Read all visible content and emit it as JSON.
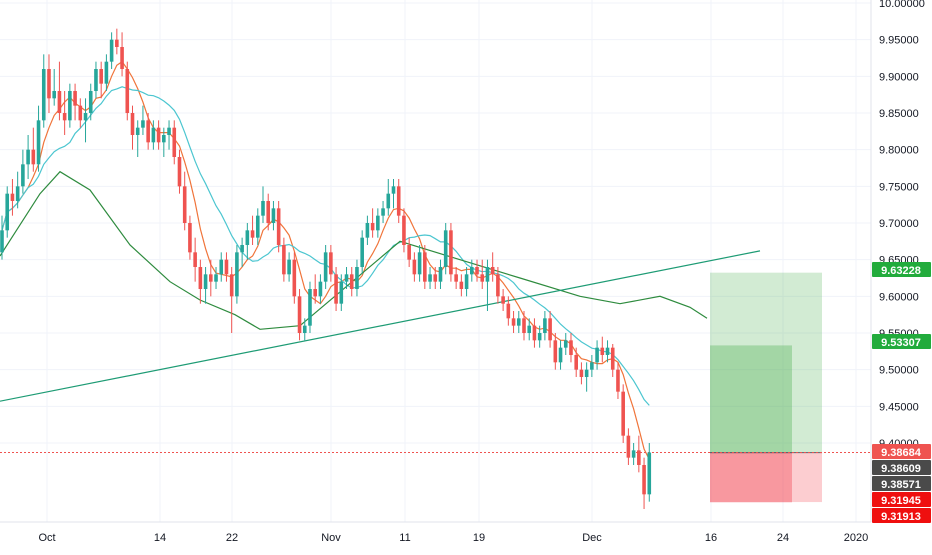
{
  "chart_data": {
    "type": "candlestick",
    "title": "",
    "xlabel": "",
    "ylabel": "",
    "ylim": [
      9.255,
      10.0
    ],
    "grid": true,
    "x_ticks": [
      "Oct",
      "14",
      "22",
      "Nov",
      "11",
      "19",
      "Dec",
      "16",
      "24",
      "2020"
    ],
    "y_ticks": [
      "9.40000",
      "9.45000",
      "9.50000",
      "9.55000",
      "9.60000",
      "9.65000",
      "9.70000",
      "9.75000",
      "9.80000",
      "9.85000",
      "9.90000",
      "9.95000",
      "10.00000"
    ],
    "price_labels": [
      {
        "value": "9.63228",
        "color": "#22ab3c"
      },
      {
        "value": "9.53307",
        "color": "#22ab3c"
      },
      {
        "value": "9.38684",
        "color": "#ef5350"
      },
      {
        "value": "9.38609",
        "color": "#4a4a4a"
      },
      {
        "value": "9.38571",
        "color": "#4a4a4a"
      },
      {
        "value": "9.31945",
        "color": "#ef0f0f"
      },
      {
        "value": "9.31913",
        "color": "#ef0f0f"
      }
    ],
    "series": [
      {
        "type": "moving-average",
        "color": "#f0743a"
      },
      {
        "type": "moving-average",
        "color": "#4cc6d0"
      },
      {
        "type": "moving-average",
        "color": "#2e8b3e"
      },
      {
        "type": "trendline",
        "color": "#1d9b74",
        "points": [
          [
            0,
            9.457
          ],
          [
            136,
            9.662
          ]
        ]
      }
    ],
    "position_tools": [
      {
        "entry": 9.38684,
        "target": 9.63228,
        "stop": 9.31945
      },
      {
        "entry": 9.38684,
        "target": 9.53307,
        "stop": 9.31913
      }
    ],
    "candles": [
      [
        9.66,
        9.71,
        9.65,
        9.69
      ],
      [
        9.69,
        9.75,
        9.68,
        9.74
      ],
      [
        9.74,
        9.76,
        9.71,
        9.73
      ],
      [
        9.73,
        9.77,
        9.72,
        9.75
      ],
      [
        9.75,
        9.8,
        9.74,
        9.78
      ],
      [
        9.78,
        9.82,
        9.76,
        9.8
      ],
      [
        9.8,
        9.83,
        9.77,
        9.78
      ],
      [
        9.78,
        9.86,
        9.77,
        9.84
      ],
      [
        9.84,
        9.93,
        9.83,
        9.91
      ],
      [
        9.91,
        9.93,
        9.85,
        9.87
      ],
      [
        9.87,
        9.91,
        9.86,
        9.88
      ],
      [
        9.88,
        9.92,
        9.84,
        9.85
      ],
      [
        9.85,
        9.88,
        9.82,
        9.84
      ],
      [
        9.84,
        9.89,
        9.83,
        9.88
      ],
      [
        9.88,
        9.89,
        9.84,
        9.86
      ],
      [
        9.86,
        9.87,
        9.83,
        9.84
      ],
      [
        9.84,
        9.87,
        9.81,
        9.85
      ],
      [
        9.85,
        9.89,
        9.84,
        9.88
      ],
      [
        9.88,
        9.92,
        9.87,
        9.91
      ],
      [
        9.91,
        9.92,
        9.87,
        9.89
      ],
      [
        9.89,
        9.93,
        9.88,
        9.92
      ],
      [
        9.92,
        9.96,
        9.91,
        9.95
      ],
      [
        9.95,
        9.965,
        9.93,
        9.94
      ],
      [
        9.94,
        9.96,
        9.9,
        9.91
      ],
      [
        9.91,
        9.92,
        9.84,
        9.85
      ],
      [
        9.85,
        9.86,
        9.8,
        9.82
      ],
      [
        9.82,
        9.84,
        9.79,
        9.83
      ],
      [
        9.83,
        9.86,
        9.82,
        9.84
      ],
      [
        9.84,
        9.85,
        9.8,
        9.81
      ],
      [
        9.81,
        9.84,
        9.8,
        9.83
      ],
      [
        9.83,
        9.84,
        9.8,
        9.81
      ],
      [
        9.81,
        9.83,
        9.79,
        9.82
      ],
      [
        9.82,
        9.84,
        9.8,
        9.83
      ],
      [
        9.83,
        9.84,
        9.78,
        9.79
      ],
      [
        9.79,
        9.8,
        9.74,
        9.75
      ],
      [
        9.75,
        9.77,
        9.69,
        9.7
      ],
      [
        9.7,
        9.71,
        9.65,
        9.66
      ],
      [
        9.66,
        9.68,
        9.62,
        9.64
      ],
      [
        9.64,
        9.65,
        9.59,
        9.61
      ],
      [
        9.61,
        9.64,
        9.59,
        9.63
      ],
      [
        9.63,
        9.65,
        9.6,
        9.62
      ],
      [
        9.62,
        9.64,
        9.61,
        9.63
      ],
      [
        9.63,
        9.66,
        9.62,
        9.65
      ],
      [
        9.65,
        9.66,
        9.62,
        9.63
      ],
      [
        9.63,
        9.64,
        9.55,
        9.6
      ],
      [
        9.6,
        9.67,
        9.59,
        9.66
      ],
      [
        9.66,
        9.68,
        9.64,
        9.67
      ],
      [
        9.67,
        9.7,
        9.65,
        9.69
      ],
      [
        9.69,
        9.71,
        9.67,
        9.68
      ],
      [
        9.68,
        9.72,
        9.67,
        9.71
      ],
      [
        9.71,
        9.75,
        9.7,
        9.73
      ],
      [
        9.73,
        9.74,
        9.69,
        9.7
      ],
      [
        9.7,
        9.73,
        9.69,
        9.72
      ],
      [
        9.72,
        9.73,
        9.66,
        9.67
      ],
      [
        9.67,
        9.68,
        9.62,
        9.63
      ],
      [
        9.63,
        9.66,
        9.62,
        9.65
      ],
      [
        9.65,
        9.66,
        9.59,
        9.6
      ],
      [
        9.6,
        9.61,
        9.54,
        9.55
      ],
      [
        9.55,
        9.57,
        9.54,
        9.56
      ],
      [
        9.56,
        9.62,
        9.55,
        9.61
      ],
      [
        9.61,
        9.63,
        9.59,
        9.6
      ],
      [
        9.6,
        9.63,
        9.59,
        9.62
      ],
      [
        9.62,
        9.67,
        9.61,
        9.66
      ],
      [
        9.66,
        9.67,
        9.62,
        9.63
      ],
      [
        9.63,
        9.64,
        9.58,
        9.59
      ],
      [
        9.59,
        9.63,
        9.58,
        9.62
      ],
      [
        9.62,
        9.64,
        9.61,
        9.63
      ],
      [
        9.63,
        9.64,
        9.6,
        9.61
      ],
      [
        9.61,
        9.65,
        9.6,
        9.64
      ],
      [
        9.64,
        9.69,
        9.63,
        9.68
      ],
      [
        9.68,
        9.71,
        9.67,
        9.7
      ],
      [
        9.7,
        9.72,
        9.68,
        9.69
      ],
      [
        9.69,
        9.72,
        9.68,
        9.71
      ],
      [
        9.71,
        9.73,
        9.7,
        9.72
      ],
      [
        9.72,
        9.76,
        9.71,
        9.74
      ],
      [
        9.74,
        9.76,
        9.72,
        9.75
      ],
      [
        9.75,
        9.76,
        9.7,
        9.71
      ],
      [
        9.71,
        9.72,
        9.66,
        9.67
      ],
      [
        9.67,
        9.68,
        9.64,
        9.65
      ],
      [
        9.65,
        9.66,
        9.62,
        9.63
      ],
      [
        9.63,
        9.67,
        9.62,
        9.66
      ],
      [
        9.66,
        9.67,
        9.61,
        9.62
      ],
      [
        9.62,
        9.64,
        9.61,
        9.63
      ],
      [
        9.63,
        9.64,
        9.61,
        9.62
      ],
      [
        9.62,
        9.65,
        9.61,
        9.64
      ],
      [
        9.64,
        9.7,
        9.63,
        9.69
      ],
      [
        9.69,
        9.7,
        9.62,
        9.63
      ],
      [
        9.63,
        9.64,
        9.61,
        9.62
      ],
      [
        9.62,
        9.63,
        9.6,
        9.61
      ],
      [
        9.61,
        9.64,
        9.6,
        9.63
      ],
      [
        9.63,
        9.65,
        9.62,
        9.64
      ],
      [
        9.64,
        9.65,
        9.62,
        9.63
      ],
      [
        9.63,
        9.65,
        9.61,
        9.62
      ],
      [
        9.62,
        9.65,
        9.58,
        9.64
      ],
      [
        9.64,
        9.66,
        9.62,
        9.63
      ],
      [
        9.63,
        9.64,
        9.59,
        9.6
      ],
      [
        9.6,
        9.61,
        9.58,
        9.59
      ],
      [
        9.59,
        9.6,
        9.56,
        9.57
      ],
      [
        9.57,
        9.58,
        9.55,
        9.56
      ],
      [
        9.56,
        9.58,
        9.55,
        9.57
      ],
      [
        9.57,
        9.58,
        9.54,
        9.55
      ],
      [
        9.55,
        9.57,
        9.54,
        9.56
      ],
      [
        9.56,
        9.57,
        9.53,
        9.54
      ],
      [
        9.54,
        9.56,
        9.53,
        9.55
      ],
      [
        9.55,
        9.58,
        9.54,
        9.57
      ],
      [
        9.57,
        9.58,
        9.53,
        9.54
      ],
      [
        9.54,
        9.55,
        9.5,
        9.51
      ],
      [
        9.51,
        9.54,
        9.5,
        9.53
      ],
      [
        9.53,
        9.55,
        9.52,
        9.54
      ],
      [
        9.54,
        9.55,
        9.51,
        9.52
      ],
      [
        9.52,
        9.53,
        9.49,
        9.5
      ],
      [
        9.5,
        9.51,
        9.48,
        9.49
      ],
      [
        9.49,
        9.51,
        9.47,
        9.5
      ],
      [
        9.5,
        9.52,
        9.49,
        9.51
      ],
      [
        9.51,
        9.54,
        9.5,
        9.53
      ],
      [
        9.53,
        9.545,
        9.51,
        9.52
      ],
      [
        9.52,
        9.54,
        9.51,
        9.53
      ],
      [
        9.53,
        9.535,
        9.49,
        9.5
      ],
      [
        9.5,
        9.51,
        9.46,
        9.47
      ],
      [
        9.47,
        9.48,
        9.4,
        9.41
      ],
      [
        9.41,
        9.42,
        9.37,
        9.38
      ],
      [
        9.38,
        9.4,
        9.37,
        9.39
      ],
      [
        9.39,
        9.41,
        9.36,
        9.37
      ],
      [
        9.37,
        9.38,
        9.31,
        9.33
      ],
      [
        9.33,
        9.4,
        9.32,
        9.387
      ]
    ]
  }
}
